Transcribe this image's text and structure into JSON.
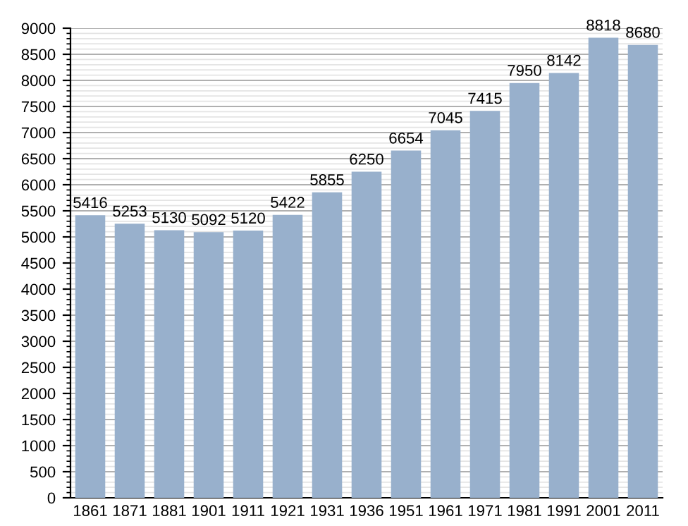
{
  "chart_data": {
    "type": "bar",
    "categories": [
      "1861",
      "1871",
      "1881",
      "1901",
      "1911",
      "1921",
      "1931",
      "1936",
      "1951",
      "1961",
      "1971",
      "1981",
      "1991",
      "2001",
      "2011"
    ],
    "values": [
      5416,
      5253,
      5130,
      5092,
      5120,
      5422,
      5855,
      6250,
      6654,
      7045,
      7415,
      7950,
      8142,
      8818,
      8680
    ],
    "color": "#98b0cc",
    "ylim": [
      0,
      9000
    ],
    "yticks": [
      0,
      500,
      1000,
      1500,
      2000,
      2500,
      3000,
      3500,
      4000,
      4500,
      5000,
      5500,
      6000,
      6500,
      7000,
      7500,
      8000,
      8500,
      9000
    ],
    "grid": "y",
    "data_labels": true
  }
}
